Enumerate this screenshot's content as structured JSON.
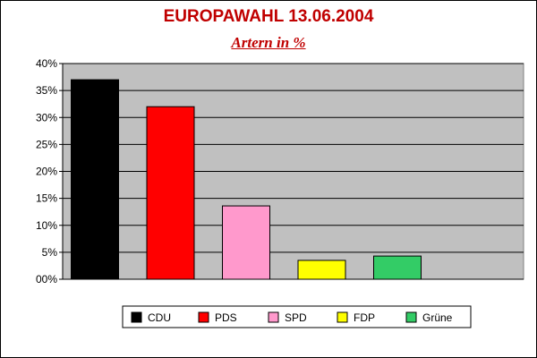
{
  "header": {
    "title": "EUROPAWAHL 13.06.2004",
    "subtitle": "Artern in %"
  },
  "chart_data": {
    "type": "bar",
    "title": "EUROPAWAHL 13.06.2004",
    "subtitle": "Artern in %",
    "xlabel": "",
    "ylabel": "",
    "categories": [
      "CDU",
      "PDS",
      "SPD",
      "FDP",
      "Grüne"
    ],
    "values": [
      37.0,
      32.0,
      13.6,
      3.5,
      4.3
    ],
    "colors": [
      "#000000",
      "#ff0000",
      "#ff99cc",
      "#ffff00",
      "#33cc66"
    ],
    "ylim": [
      0,
      40
    ],
    "yticks": [
      0,
      5,
      10,
      15,
      20,
      25,
      30,
      35,
      40
    ],
    "ytick_labels": [
      "00%",
      "5%",
      "10%",
      "15%",
      "20%",
      "25%",
      "30%",
      "35%",
      "40%"
    ],
    "plot_background": "#c0c0c0",
    "grid": true,
    "legend_position": "bottom"
  }
}
